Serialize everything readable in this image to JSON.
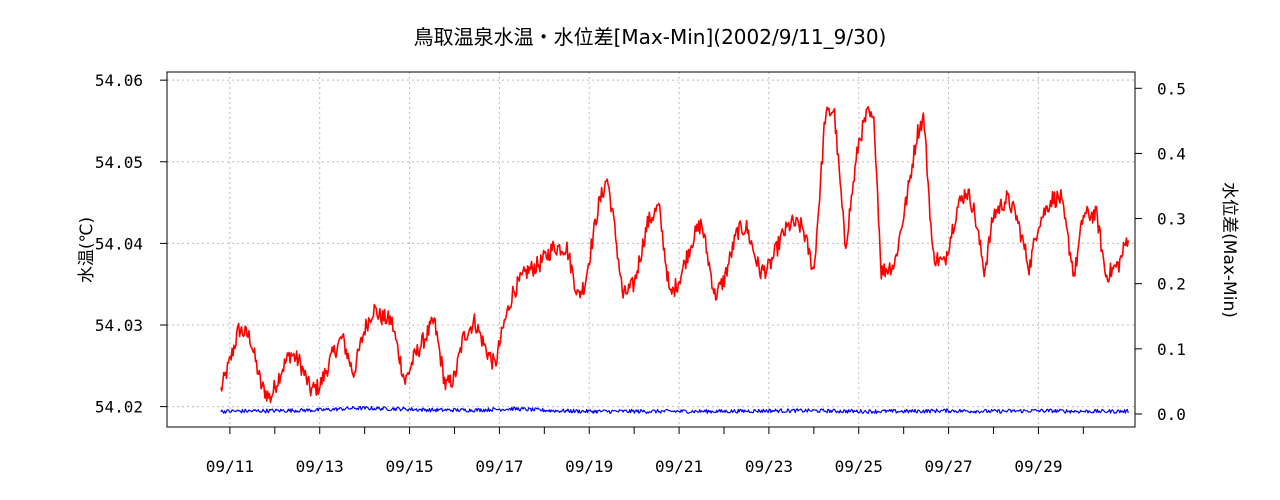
{
  "chart_data": {
    "type": "line",
    "title": "鳥取温泉水温・水位差[Max-Min](2002/9/11_9/30)",
    "xlabel": "",
    "y_left_label": "水温(℃)",
    "y_right_label": "水位差(Max-Min)",
    "y_left_lim": [
      54.0175,
      54.061
    ],
    "y_right_lim": [
      -0.02,
      0.525
    ],
    "y_left_ticks": [
      "54.02",
      "54.03",
      "54.04",
      "54.05",
      "54.06"
    ],
    "y_right_ticks": [
      "0.0",
      "0.1",
      "0.2",
      "0.3",
      "0.4",
      "0.5"
    ],
    "x_lim": [
      9.6,
      31.15
    ],
    "x_ticks": [
      "09/11",
      "09/13",
      "09/15",
      "09/17",
      "09/19",
      "09/21",
      "09/23",
      "09/25",
      "09/27",
      "09/29"
    ],
    "grid": true,
    "series": [
      {
        "axis": "left",
        "color": "#ff0000",
        "x": [
          10.8,
          11.0,
          11.2,
          11.45,
          11.7,
          11.9,
          12.15,
          12.35,
          12.55,
          12.8,
          13.0,
          13.3,
          13.5,
          13.75,
          14.0,
          14.2,
          14.35,
          14.6,
          14.9,
          15.1,
          15.35,
          15.55,
          15.8,
          16.0,
          16.2,
          16.45,
          16.7,
          16.9,
          17.1,
          17.3,
          17.6,
          17.9,
          18.2,
          18.5,
          18.75,
          18.9,
          19.2,
          19.4,
          19.55,
          19.75,
          20.0,
          20.3,
          20.55,
          20.8,
          21.0,
          21.3,
          21.5,
          21.8,
          22.0,
          22.3,
          22.5,
          22.8,
          23.0,
          23.3,
          23.5,
          23.75,
          24.0,
          24.15,
          24.25,
          24.45,
          24.7,
          25.0,
          25.2,
          25.35,
          25.5,
          25.8,
          26.1,
          26.3,
          26.45,
          26.65,
          26.9,
          27.2,
          27.4,
          27.55,
          27.8,
          28.0,
          28.3,
          28.5,
          28.8,
          29.0,
          29.3,
          29.5,
          29.8,
          30.0,
          30.3,
          30.5,
          30.8,
          31.0
        ],
        "y": [
          54.022,
          54.0255,
          54.0295,
          54.0285,
          54.0225,
          54.021,
          54.0245,
          54.0265,
          54.0255,
          54.022,
          54.0225,
          54.0265,
          54.0285,
          54.024,
          54.0295,
          54.032,
          54.031,
          54.0305,
          54.023,
          54.026,
          54.0285,
          54.0305,
          54.0225,
          54.0235,
          54.0285,
          54.0305,
          54.027,
          54.025,
          54.03,
          54.034,
          54.0365,
          54.0375,
          54.0395,
          54.0395,
          54.0335,
          54.035,
          54.0445,
          54.048,
          54.0425,
          54.0335,
          54.035,
          54.0425,
          54.0445,
          54.0335,
          54.0355,
          54.0405,
          54.0425,
          54.0335,
          54.0355,
          54.0415,
          54.042,
          54.0365,
          54.037,
          54.041,
          54.0425,
          54.042,
          54.0365,
          54.0475,
          54.0555,
          54.0565,
          54.0395,
          54.0525,
          54.056,
          54.0545,
          54.0365,
          54.0375,
          54.0465,
          54.0535,
          54.0555,
          54.0385,
          54.0375,
          54.0445,
          54.0465,
          54.0445,
          54.0365,
          54.0435,
          54.0455,
          54.0435,
          54.037,
          54.0425,
          54.0455,
          54.0455,
          54.036,
          54.0435,
          54.0435,
          54.036,
          54.0375,
          54.041
        ]
      },
      {
        "axis": "right",
        "color": "#0000ff",
        "x": [
          10.8,
          12.0,
          13.0,
          13.8,
          14.7,
          15.5,
          16.5,
          17.3,
          18.2,
          19.0,
          20.0,
          21.0,
          22.0,
          23.0,
          24.0,
          25.0,
          26.0,
          27.0,
          28.0,
          29.0,
          30.0,
          31.0
        ],
        "y": [
          0.004,
          0.005,
          0.006,
          0.009,
          0.008,
          0.006,
          0.006,
          0.008,
          0.005,
          0.004,
          0.004,
          0.004,
          0.004,
          0.005,
          0.005,
          0.004,
          0.004,
          0.005,
          0.004,
          0.005,
          0.004,
          0.004
        ]
      }
    ]
  }
}
